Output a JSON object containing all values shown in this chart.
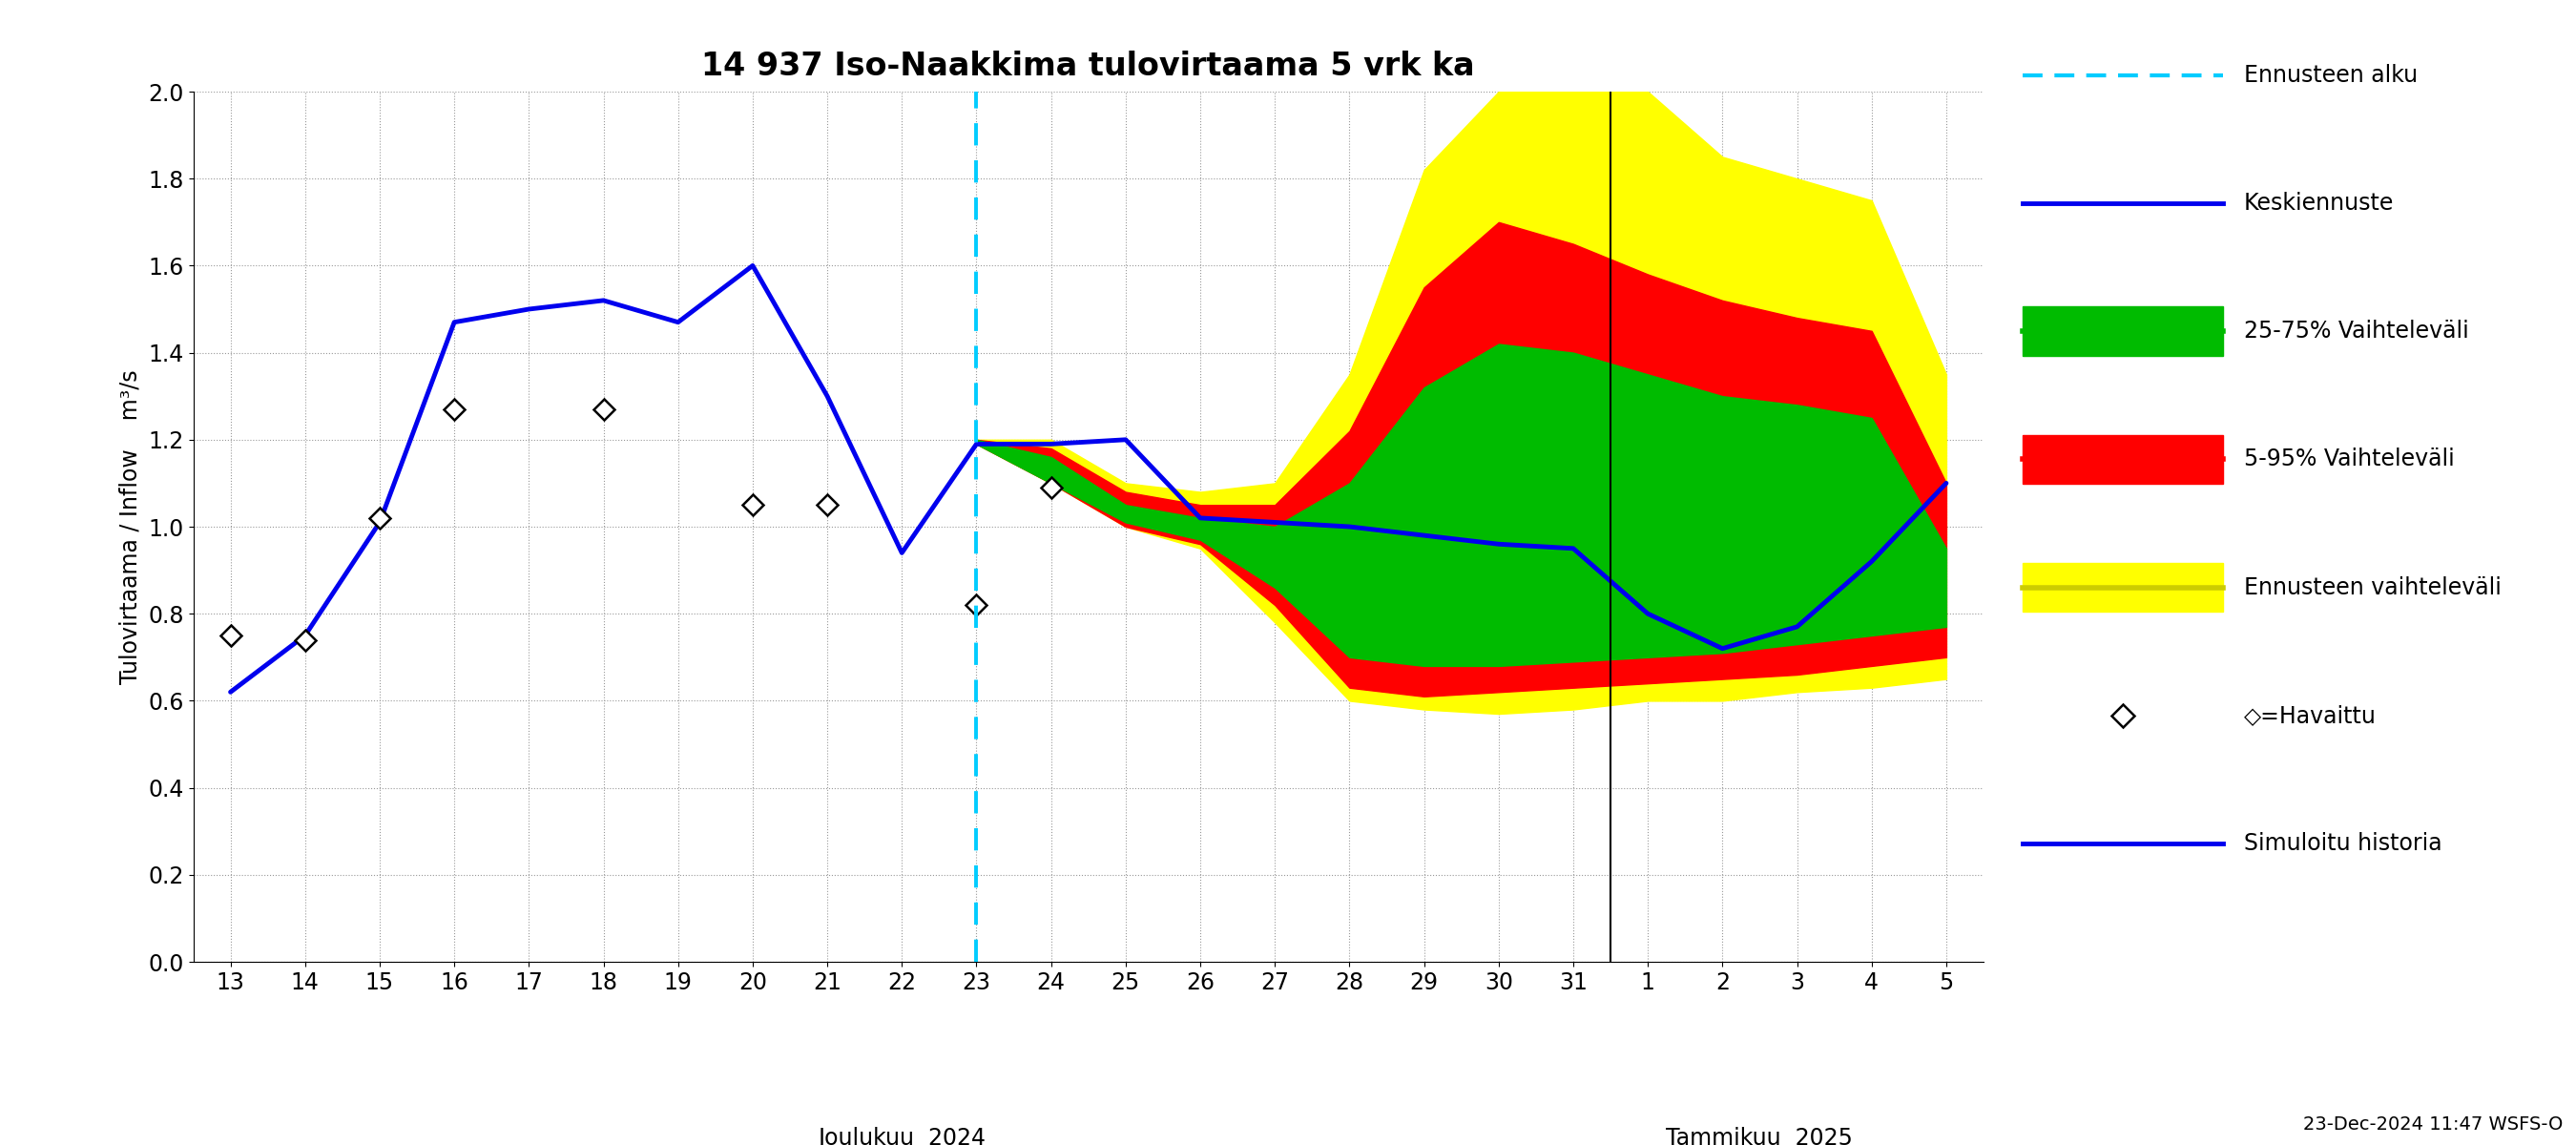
{
  "title": "14 937 Iso-Naakkima tulovirtaama 5 vrk ka",
  "ylabel": "Tulovirtaama / Inflow    m³/s",
  "ylim": [
    0.0,
    2.0
  ],
  "yticks": [
    0.0,
    0.2,
    0.4,
    0.6,
    0.8,
    1.0,
    1.2,
    1.4,
    1.6,
    1.8,
    2.0
  ],
  "footer_text": "23-Dec-2024 11:47 WSFS-O",
  "vline_color": "#00CCFF",
  "blue_line_x": [
    0,
    1,
    2,
    3,
    4,
    5,
    6,
    7,
    8,
    9,
    10,
    11,
    12,
    13,
    14,
    15,
    16,
    17,
    18,
    19,
    20,
    21,
    22,
    23
  ],
  "blue_line_y": [
    0.62,
    0.75,
    1.01,
    1.47,
    1.5,
    1.52,
    1.47,
    1.6,
    1.3,
    0.94,
    1.19,
    1.19,
    1.2,
    1.02,
    1.01,
    1.0,
    0.98,
    0.96,
    0.95,
    0.8,
    0.72,
    0.77,
    0.92,
    1.1
  ],
  "observed_x": [
    0,
    1,
    2,
    3,
    5,
    7,
    8,
    10,
    11
  ],
  "observed_y": [
    0.75,
    0.74,
    1.02,
    1.27,
    1.27,
    1.05,
    1.05,
    0.82,
    1.09
  ],
  "yellow_x": [
    10,
    11,
    12,
    13,
    14,
    15,
    16,
    17,
    18,
    19,
    20,
    21,
    22,
    23
  ],
  "yellow_upper": [
    1.2,
    1.2,
    1.1,
    1.08,
    1.1,
    1.35,
    1.82,
    2.0,
    2.0,
    2.0,
    1.85,
    1.8,
    1.75,
    1.35
  ],
  "yellow_lower": [
    1.19,
    1.1,
    1.0,
    0.95,
    0.78,
    0.6,
    0.58,
    0.57,
    0.58,
    0.6,
    0.6,
    0.62,
    0.63,
    0.65
  ],
  "red_x": [
    10,
    11,
    12,
    13,
    14,
    15,
    16,
    17,
    18,
    19,
    20,
    21,
    22,
    23
  ],
  "red_upper": [
    1.2,
    1.18,
    1.08,
    1.05,
    1.05,
    1.22,
    1.55,
    1.7,
    1.65,
    1.58,
    1.52,
    1.48,
    1.45,
    1.1
  ],
  "red_lower": [
    1.19,
    1.1,
    1.0,
    0.96,
    0.82,
    0.63,
    0.61,
    0.62,
    0.63,
    0.64,
    0.65,
    0.66,
    0.68,
    0.7
  ],
  "green_x": [
    10,
    11,
    12,
    13,
    14,
    15,
    16,
    17,
    18,
    19,
    20,
    21,
    22,
    23
  ],
  "green_upper": [
    1.2,
    1.16,
    1.05,
    1.02,
    1.0,
    1.1,
    1.32,
    1.42,
    1.4,
    1.35,
    1.3,
    1.28,
    1.25,
    0.95
  ],
  "green_lower": [
    1.19,
    1.1,
    1.01,
    0.97,
    0.86,
    0.7,
    0.68,
    0.68,
    0.69,
    0.7,
    0.71,
    0.73,
    0.75,
    0.77
  ]
}
